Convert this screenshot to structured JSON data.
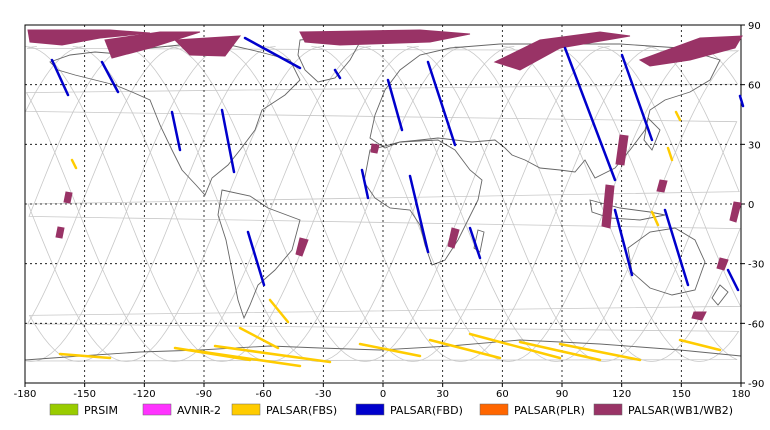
{
  "x_ticks": [
    "-180",
    "-150",
    "-120",
    "-90",
    "-60",
    "-30",
    "0",
    "30",
    "60",
    "90",
    "120",
    "150",
    "180"
  ],
  "y_ticks": [
    "90",
    "60",
    "30",
    "0",
    "-30",
    "-60",
    "-90"
  ],
  "legend": [
    {
      "label": "PRSIM",
      "color": "#99cc00"
    },
    {
      "label": "AVNIR-2",
      "color": "#ff33ff"
    },
    {
      "label": "PALSAR(FBS)",
      "color": "#ffcc00"
    },
    {
      "label": "PALSAR(FBD)",
      "color": "#0000cc"
    },
    {
      "label": "PALSAR(PLR)",
      "color": "#ff6600"
    },
    {
      "label": "PALSAR(WB1/WB2)",
      "color": "#993366"
    }
  ],
  "colors": {
    "land": "#666666",
    "orbit": "#c8c8c8",
    "grid": "#000000",
    "fbs": "#ffcc00",
    "fbd": "#0000cc",
    "wb": "#993366"
  }
}
